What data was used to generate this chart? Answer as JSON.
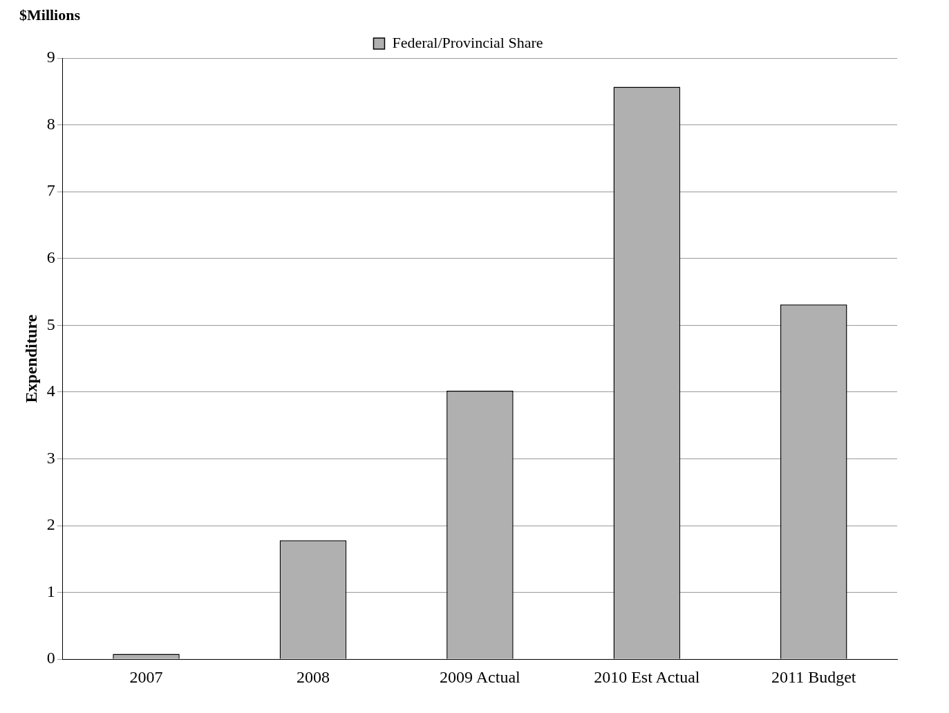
{
  "chart_data": {
    "type": "bar",
    "ylabel": "Expenditure",
    "annotations": [
      "$Millions"
    ],
    "categories": [
      "2007",
      "2008",
      "2009 Actual",
      "2010 Est Actual",
      "2011 Budget"
    ],
    "series": [
      {
        "name": "Federal/Provincial Share",
        "color": "#b0b0b0",
        "values": [
          0.08,
          1.78,
          4.02,
          8.57,
          5.31
        ]
      }
    ],
    "ylim": [
      0,
      9
    ],
    "yticks": [
      0,
      1,
      2,
      3,
      4,
      5,
      6,
      7,
      8,
      9
    ],
    "grid": "y",
    "legend": "top"
  }
}
